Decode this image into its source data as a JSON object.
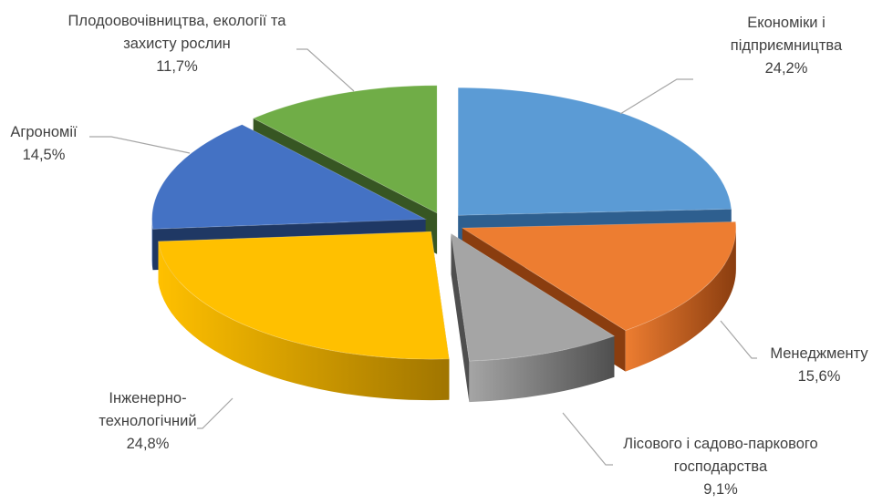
{
  "chart_data": {
    "type": "pie",
    "style": "3d-exploded",
    "title": "",
    "slices": [
      {
        "label": [
          "Економіки і",
          "підприємництва"
        ],
        "value": 24.2,
        "value_label": "24,2%",
        "color": "#5b9bd5",
        "dark": "#2e5f8f"
      },
      {
        "label": [
          "Менеджменту"
        ],
        "value": 15.6,
        "value_label": "15,6%",
        "color": "#ed7d31",
        "dark": "#8a3d0f"
      },
      {
        "label": [
          "Лісового і садово-паркового",
          "господарства"
        ],
        "value": 9.1,
        "value_label": "9,1%",
        "color": "#a5a5a5",
        "dark": "#4f4f4f"
      },
      {
        "label": [
          "Інженерно-",
          "технологічний"
        ],
        "value": 24.8,
        "value_label": "24,8%",
        "color": "#ffc000",
        "dark": "#a07500"
      },
      {
        "label": [
          "Агрономії"
        ],
        "value": 14.5,
        "value_label": "14,5%",
        "color": "#4472c4",
        "dark": "#1f3864"
      },
      {
        "label": [
          "Плодоовочівництва, екології та",
          "захисту рослин"
        ],
        "value": 11.7,
        "value_label": "11,7%",
        "color": "#70ad47",
        "dark": "#375623"
      }
    ]
  }
}
